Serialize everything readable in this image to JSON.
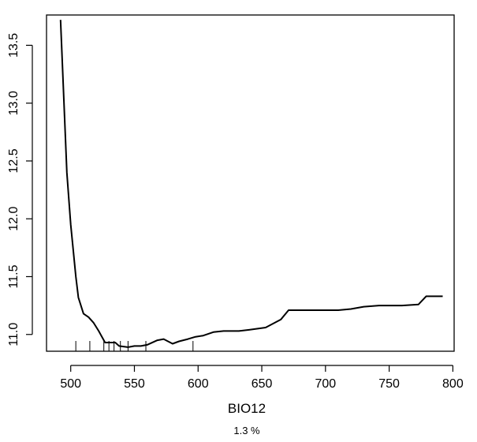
{
  "chart_data": {
    "type": "line",
    "xlabel": "BIO12",
    "ylabel": "",
    "subtitle": "1.3 %",
    "xlim": [
      481,
      801
    ],
    "ylim": [
      10.855,
      13.762
    ],
    "xticks": [
      500,
      550,
      600,
      650,
      700,
      750,
      800
    ],
    "yticks": [
      11.0,
      11.5,
      12.0,
      12.5,
      13.0,
      13.5
    ],
    "xtick_labels": [
      "500",
      "550",
      "600",
      "650",
      "700",
      "750",
      "800"
    ],
    "ytick_labels": [
      "11.0",
      "11.5",
      "12.0",
      "12.5",
      "13.0",
      "13.5"
    ],
    "grid": false,
    "rug": [
      504,
      515,
      526,
      530,
      534,
      539,
      545,
      559,
      596
    ],
    "series": [
      {
        "x": [
          492,
          497,
          500,
          504,
          506,
          510,
          514,
          518,
          522,
          527,
          530,
          535,
          538,
          545,
          550,
          555,
          560,
          568,
          573,
          580,
          585,
          592,
          598,
          604,
          612,
          620,
          632,
          640,
          653,
          665,
          671,
          683,
          692,
          710,
          720,
          730,
          742,
          760,
          773,
          779,
          792
        ],
        "y": [
          13.72,
          12.4,
          11.95,
          11.5,
          11.32,
          11.18,
          11.15,
          11.1,
          11.03,
          10.93,
          10.93,
          10.93,
          10.9,
          10.89,
          10.9,
          10.9,
          10.91,
          10.95,
          10.96,
          10.92,
          10.94,
          10.96,
          10.98,
          10.99,
          11.02,
          11.03,
          11.03,
          11.04,
          11.06,
          11.13,
          11.21,
          11.21,
          11.21,
          11.21,
          11.22,
          11.24,
          11.25,
          11.25,
          11.26,
          11.33,
          11.33
        ]
      }
    ]
  }
}
